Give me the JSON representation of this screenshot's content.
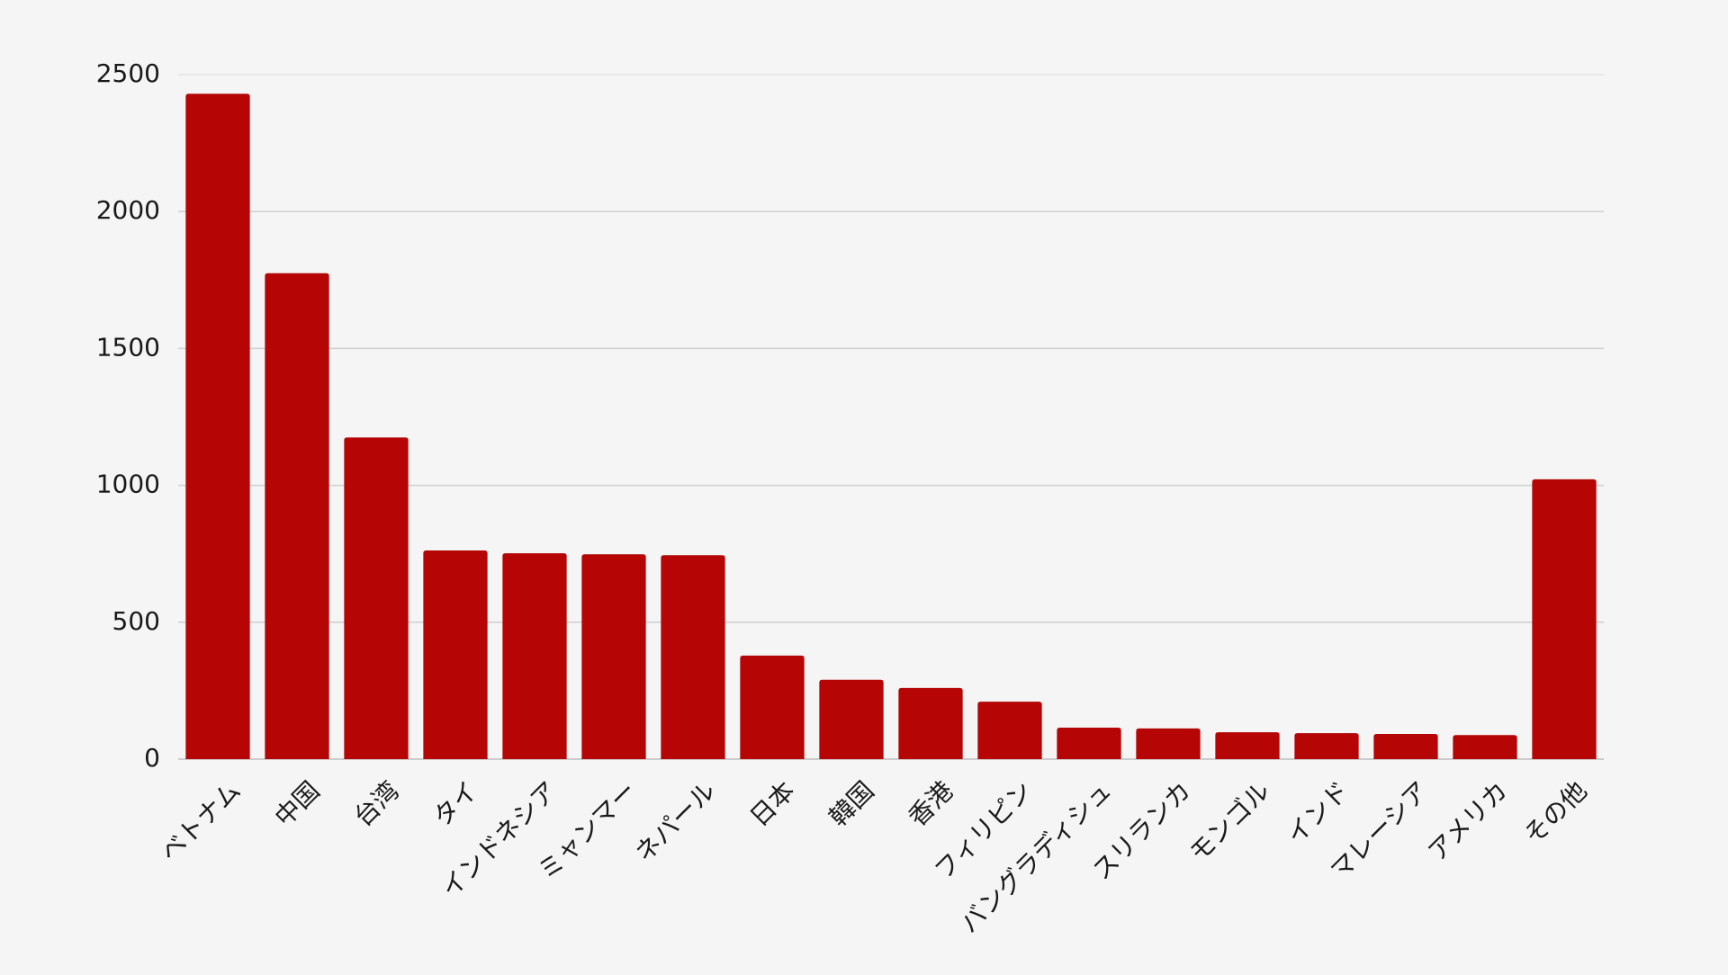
{
  "chart_data": {
    "type": "bar",
    "categories": [
      "ベトナム",
      "中国",
      "台湾",
      "タイ",
      "インドネシア",
      "ミャンマー",
      "ネパール",
      "日本",
      "韓国",
      "香港",
      "フィリピン",
      "バングラディシュ",
      "スリランカ",
      "モンゴル",
      "インド",
      "マレーシア",
      "アメリカ",
      "その他"
    ],
    "values": [
      2430,
      1775,
      1175,
      762,
      752,
      748,
      745,
      378,
      290,
      260,
      210,
      115,
      112,
      98,
      95,
      92,
      88,
      1022
    ],
    "yticks": [
      "0",
      "500",
      "1000",
      "1500",
      "2000",
      "2500"
    ],
    "ylim": [
      0,
      2500
    ],
    "bar_color": "#b50505",
    "grid": true
  }
}
